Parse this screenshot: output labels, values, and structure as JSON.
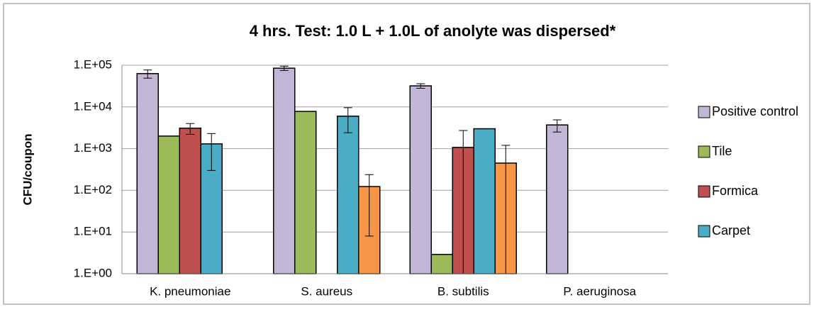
{
  "chart_data": {
    "type": "bar",
    "title": "4 hrs. Test: 1.0 L + 1.0L of anolyte was dispersed*",
    "ylabel": "CFU/coupon",
    "categories": [
      "K. pneumoniae",
      "S. aureus",
      "B. subtilis",
      "P. aeruginosa"
    ],
    "series": [
      {
        "name": "Positive control",
        "color": "#c3b5d6",
        "values": [
          63000,
          85000,
          32000,
          3700
        ],
        "errors": [
          14000,
          10000,
          4000,
          1200
        ]
      },
      {
        "name": "Tile",
        "color": "#9bbb59",
        "values": [
          2000,
          7800,
          2.9,
          null
        ],
        "errors": [
          null,
          null,
          null,
          null
        ]
      },
      {
        "name": "Formica",
        "color": "#c0504d",
        "values": [
          3100,
          null,
          1070,
          null
        ],
        "errors": [
          900,
          null,
          1650,
          null
        ]
      },
      {
        "name": "Carpet",
        "color": "#4bacc6",
        "values": [
          1300,
          6000,
          3000,
          null
        ],
        "errors": [
          1000,
          3600,
          null,
          null
        ]
      },
      {
        "color": "#f79646",
        "values": [
          null,
          123,
          450,
          null
        ],
        "errors": [
          null,
          115,
          750,
          null
        ]
      }
    ],
    "log_scale": true,
    "grid": true,
    "legend": "right",
    "ylim": [
      1,
      100000
    ],
    "yticks": [
      {
        "value": 1,
        "label": "1.E+00"
      },
      {
        "value": 10,
        "label": "1.E+01"
      },
      {
        "value": 100,
        "label": "1.E+02"
      },
      {
        "value": 1000,
        "label": "1.E+03"
      },
      {
        "value": 10000,
        "label": "1.E+04"
      },
      {
        "value": 100000,
        "label": "1.E+05"
      }
    ]
  }
}
